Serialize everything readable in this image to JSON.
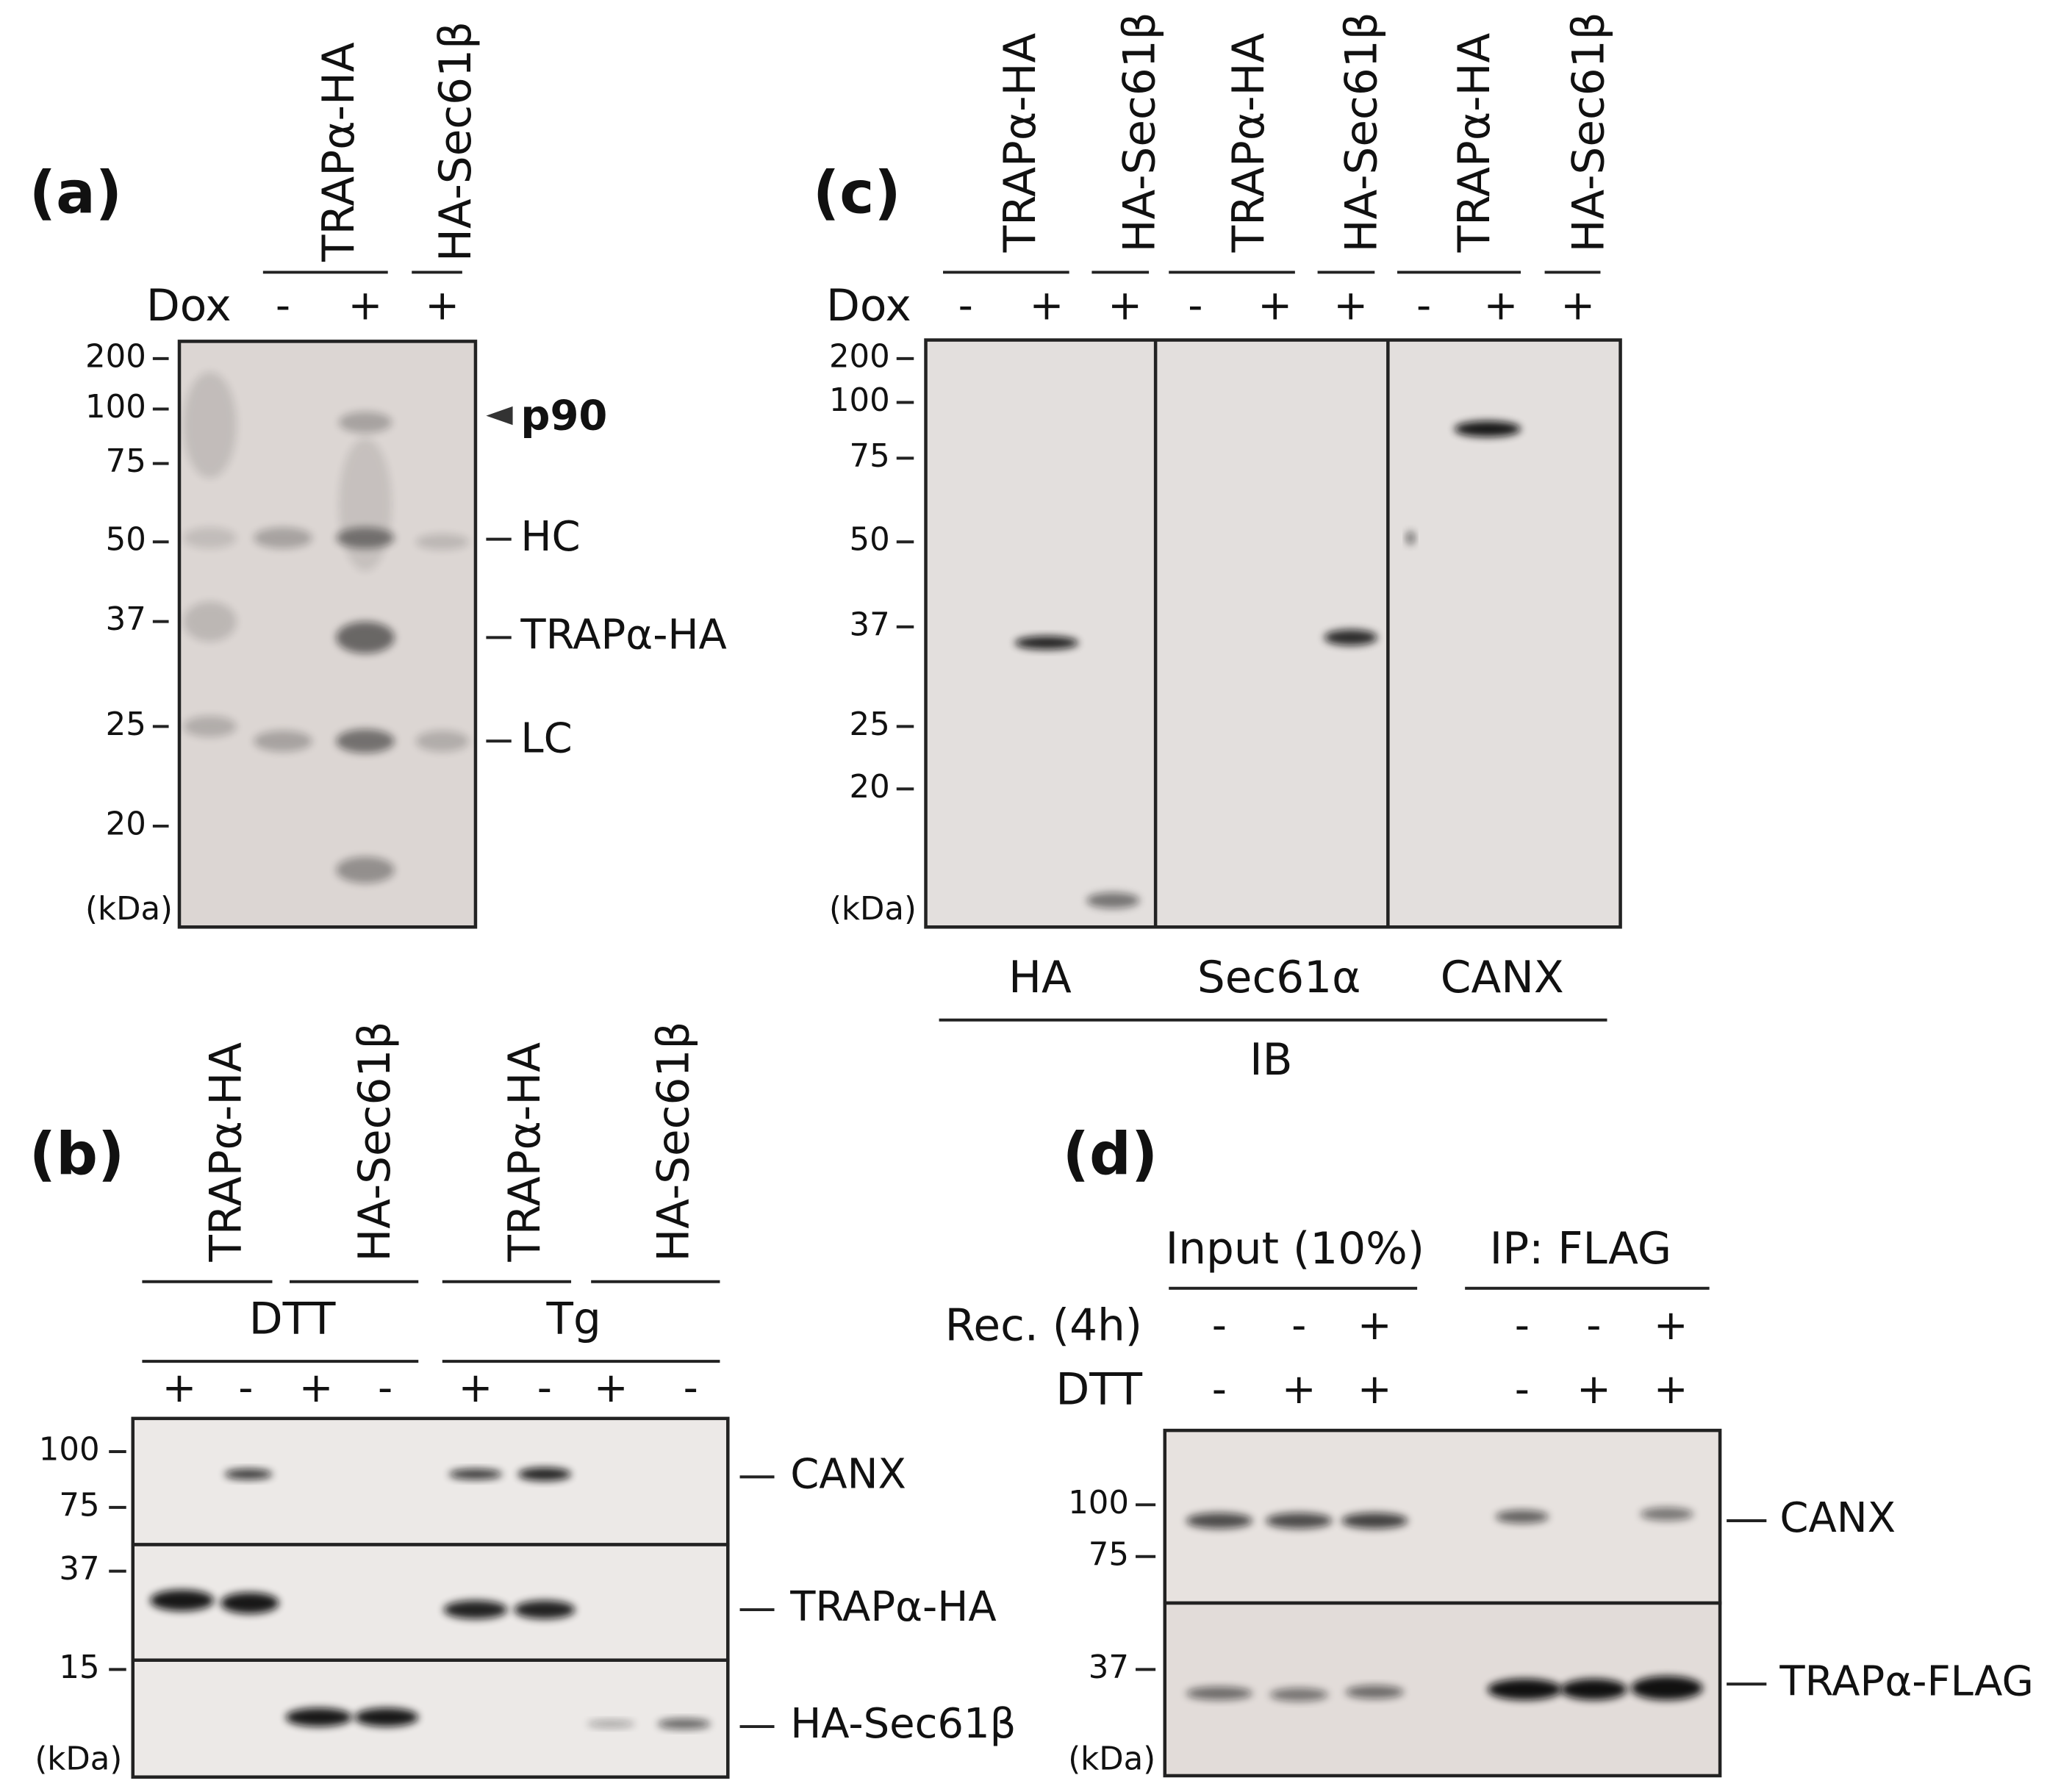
{
  "panels": [
    {
      "label": "(a)",
      "lanes": [
        "TRAPα-HA",
        "HA-Sec61β"
      ],
      "treatment": "Dox",
      "signs": [
        "-",
        "+",
        "+"
      ],
      "markers": [
        200,
        100,
        75,
        50,
        37,
        25,
        20
      ],
      "unit": "(kDa)",
      "annotations": [
        "p90",
        "HC",
        "TRAPα-HA",
        "LC"
      ]
    },
    {
      "label": "(b)",
      "lanes": [
        "TRAPα-HA",
        "HA-Sec61β",
        "TRAPα-HA",
        "HA-Sec61β"
      ],
      "groups": [
        "DTT",
        "Tg"
      ],
      "signs": [
        "+",
        "-",
        "+",
        "-",
        "+",
        "-",
        "+",
        "-"
      ],
      "markers": [
        100,
        75,
        37,
        15
      ],
      "unit": "(kDa)",
      "blot_labels": [
        "CANX",
        "TRAPα-HA",
        "HA-Sec61β"
      ]
    },
    {
      "label": "(c)",
      "lanes": [
        "TRAPα-HA",
        "HA-Sec61β",
        "TRAPα-HA",
        "HA-Sec61β",
        "TRAPα-HA",
        "HA-Sec61β"
      ],
      "treatment": "Dox",
      "signs": [
        "-",
        "+",
        "+",
        "-",
        "+",
        "+",
        "-",
        "+",
        "+"
      ],
      "markers": [
        200,
        100,
        75,
        50,
        37,
        25,
        20
      ],
      "unit": "(kDa)",
      "antibodies": [
        "HA",
        "Sec61α",
        "CANX"
      ],
      "method": "IB"
    },
    {
      "label": "(d)",
      "groups": [
        "Input (10%)",
        "IP: FLAG"
      ],
      "rows": [
        {
          "label": "Rec. (4h)",
          "signs": [
            "-",
            "-",
            "+",
            "-",
            "-",
            "+"
          ]
        },
        {
          "label": "DTT",
          "signs": [
            "-",
            "+",
            "+",
            "-",
            "+",
            "+"
          ]
        }
      ],
      "markers": [
        100,
        75,
        37
      ],
      "unit": "(kDa)",
      "blot_labels": [
        "CANX",
        "TRAPα-FLAG"
      ]
    }
  ]
}
